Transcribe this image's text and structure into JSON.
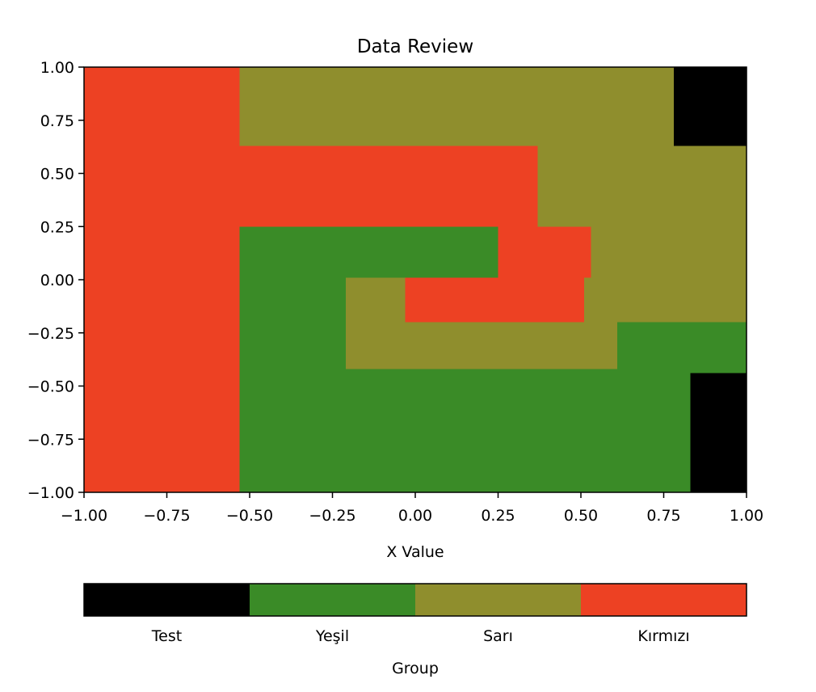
{
  "chart_data": {
    "type": "heatmap",
    "title": "Data Review",
    "xlabel": "X Value",
    "ylabel": "",
    "xlim": [
      -1.0,
      1.0
    ],
    "ylim": [
      -1.0,
      1.0
    ],
    "x_ticks": [
      "−1.00",
      "−0.75",
      "−0.50",
      "−0.25",
      "0.00",
      "0.25",
      "0.50",
      "0.75",
      "1.00"
    ],
    "y_ticks": [
      "−1.00",
      "−0.75",
      "−0.50",
      "−0.25",
      "0.00",
      "0.25",
      "0.50",
      "0.75",
      "1.00"
    ],
    "grid": false,
    "colorbar": {
      "label": "Group",
      "placement": "bottom",
      "categories": [
        "Test",
        "Yeşil",
        "Sarı",
        "Kırmızı"
      ],
      "colors": [
        "#000000",
        "#3a8b27",
        "#8f8e2d",
        "#ed4123"
      ]
    },
    "regions": [
      {
        "group": "Kırmızı",
        "x": [
          -1.0,
          -0.53
        ],
        "y": [
          -1.0,
          1.0
        ]
      },
      {
        "group": "Sarı",
        "x": [
          -0.53,
          0.78
        ],
        "y": [
          0.63,
          1.0
        ]
      },
      {
        "group": "Test",
        "x": [
          0.78,
          1.0
        ],
        "y": [
          0.63,
          1.0
        ]
      },
      {
        "group": "Kırmızı",
        "x": [
          -0.53,
          0.37
        ],
        "y": [
          0.25,
          0.63
        ]
      },
      {
        "group": "Sarı",
        "x": [
          0.37,
          1.0
        ],
        "y": [
          -0.2,
          0.63
        ]
      },
      {
        "group": "Yeşil",
        "x": [
          -0.53,
          0.25
        ],
        "y": [
          0.01,
          0.25
        ]
      },
      {
        "group": "Kırmızı",
        "x": [
          0.25,
          0.53
        ],
        "y": [
          0.01,
          0.25
        ]
      },
      {
        "group": "Yeşil",
        "x": [
          -0.53,
          -0.21
        ],
        "y": [
          -1.0,
          0.01
        ]
      },
      {
        "group": "Sarı",
        "x": [
          -0.21,
          -0.03
        ],
        "y": [
          -0.42,
          0.01
        ]
      },
      {
        "group": "Kırmızı",
        "x": [
          -0.03,
          0.51
        ],
        "y": [
          -0.2,
          0.01
        ]
      },
      {
        "group": "Sarı",
        "x": [
          -0.03,
          0.61
        ],
        "y": [
          -0.42,
          -0.2
        ]
      },
      {
        "group": "Yeşil",
        "x": [
          0.61,
          1.0
        ],
        "y": [
          -0.44,
          -0.2
        ]
      },
      {
        "group": "Yeşil",
        "x": [
          -0.21,
          0.83
        ],
        "y": [
          -1.0,
          -0.42
        ]
      },
      {
        "group": "Test",
        "x": [
          0.83,
          1.0
        ],
        "y": [
          -1.0,
          -0.44
        ]
      }
    ]
  }
}
